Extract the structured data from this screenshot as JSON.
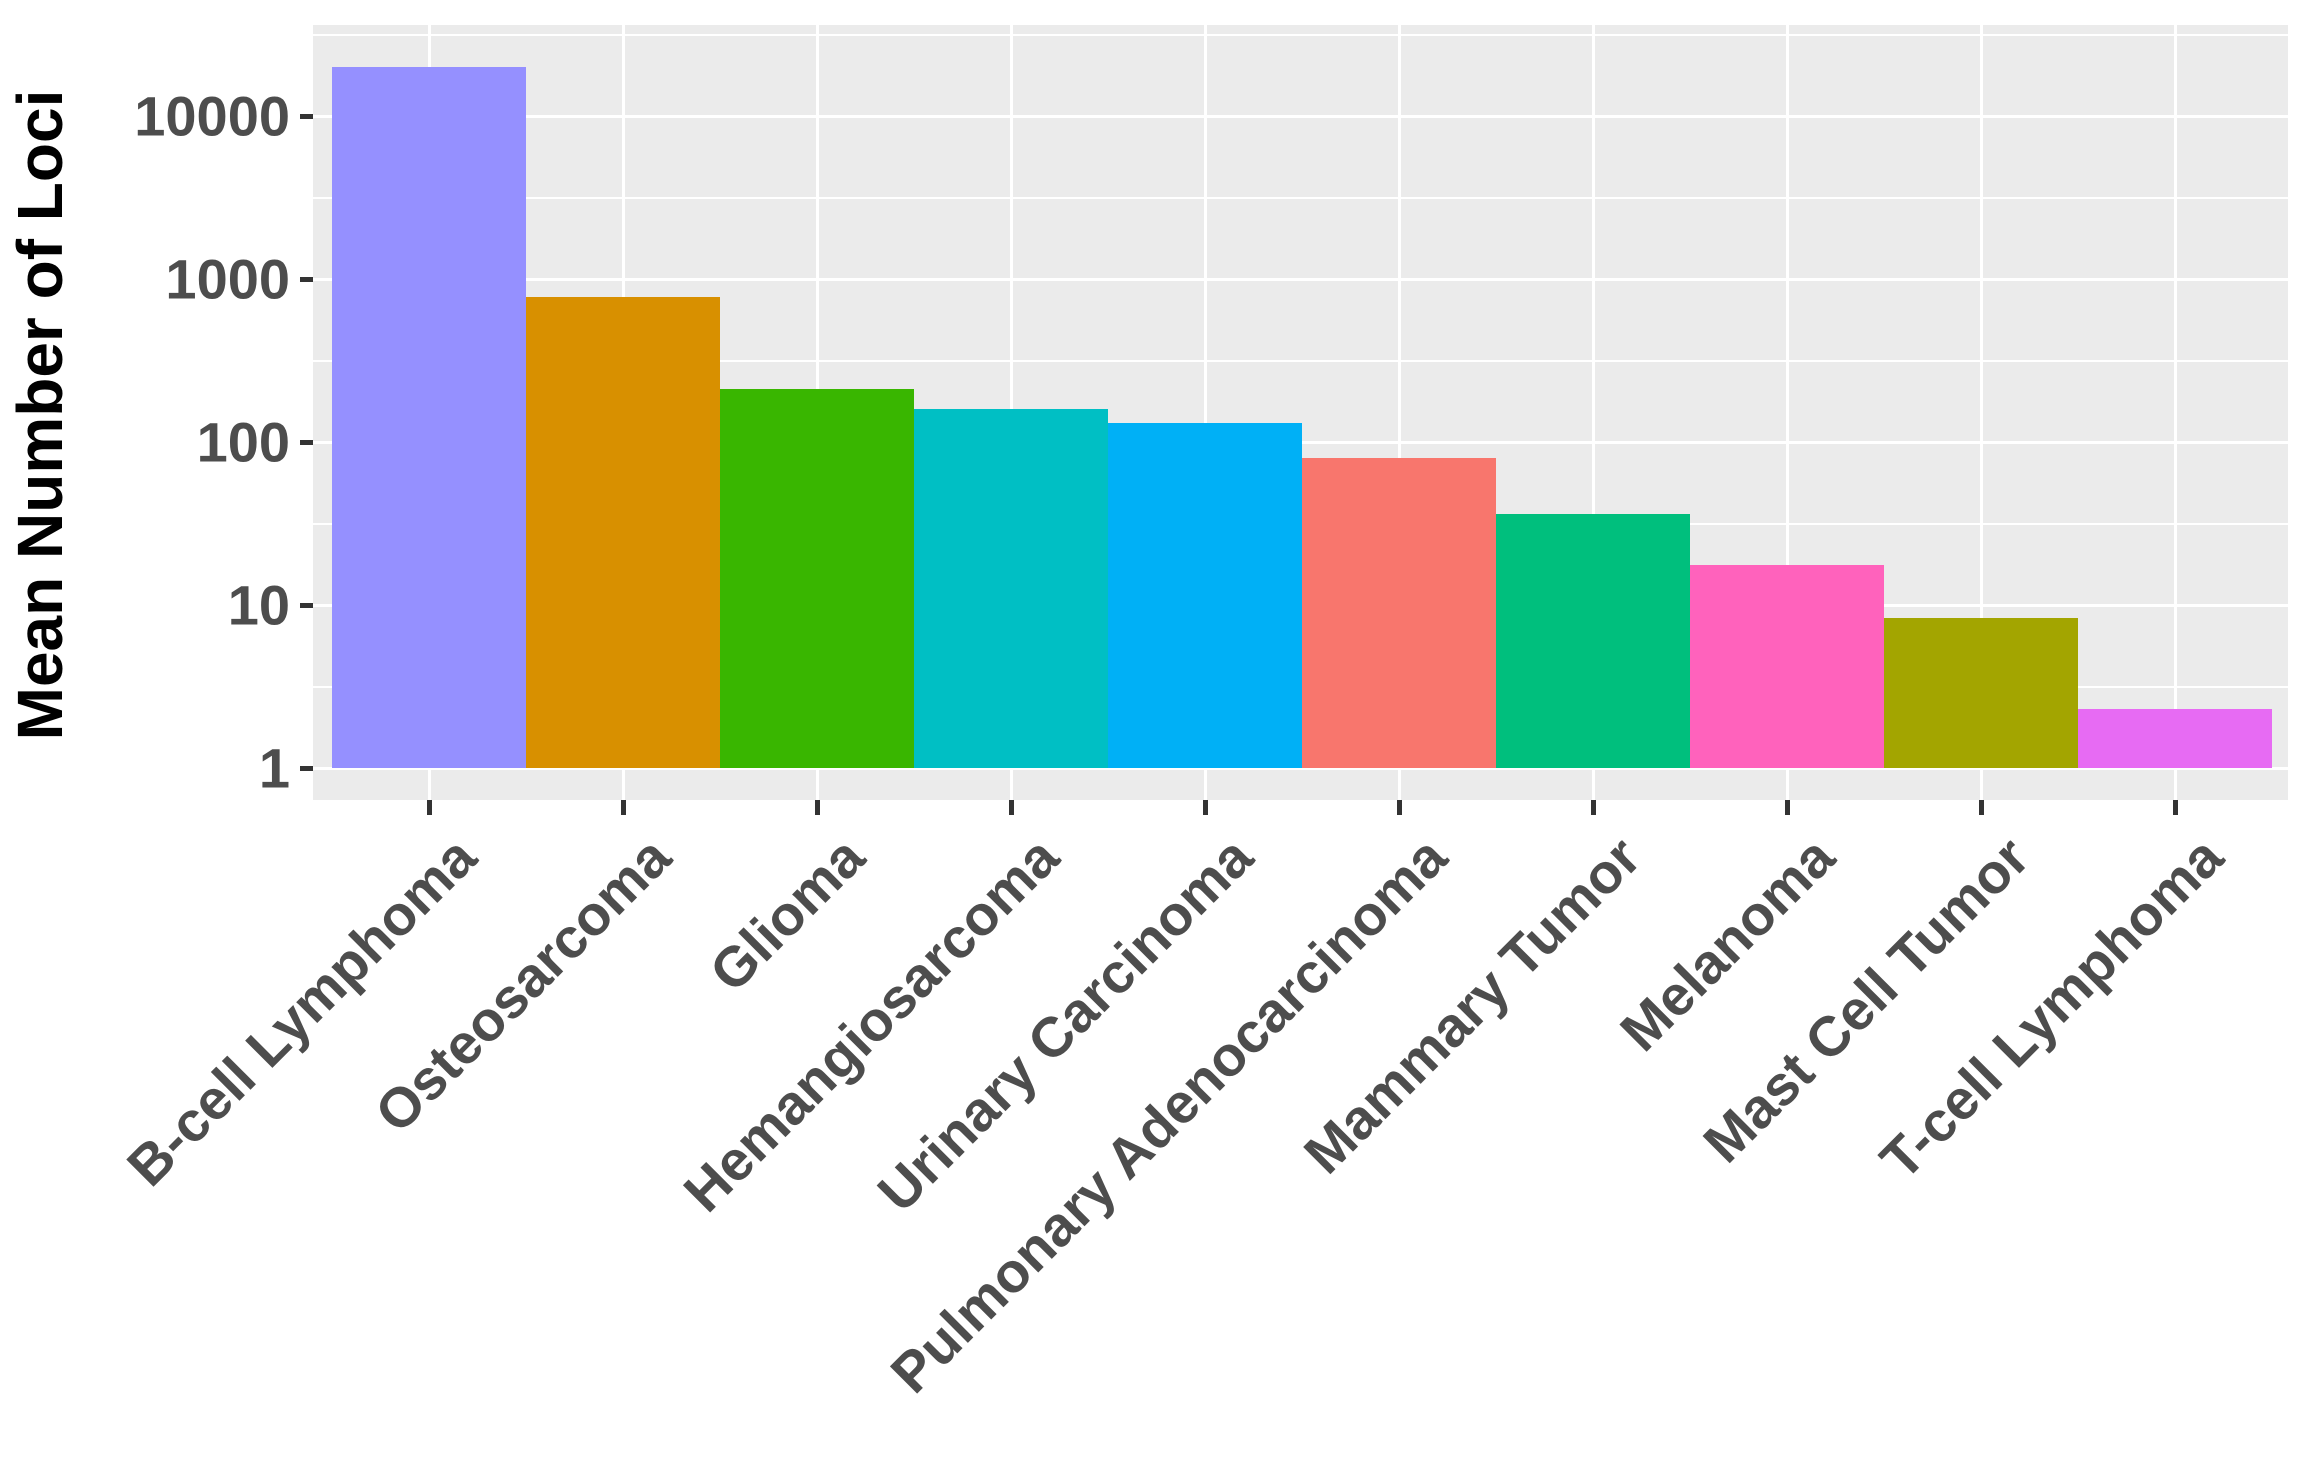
{
  "style": {
    "background": "#FFFFFF",
    "panel_bg": "#EBEBEB",
    "grid_color": "#FFFFFF",
    "axis_text_color": "#4D4D4D",
    "axis_title_color": "#000000",
    "tick_mark_color": "#333333"
  },
  "chart_data": {
    "type": "bar",
    "title": "",
    "xlabel": "",
    "ylabel": "Mean Number of Loci",
    "y_scale": "log10",
    "ylim": [
      1,
      36000
    ],
    "yticks": [
      1,
      10,
      100,
      1000,
      10000
    ],
    "ytick_labels": [
      "1",
      "10",
      "100",
      "1000",
      "10000"
    ],
    "grid": "major+minor, white on gray panel",
    "legend": "none",
    "categories": [
      "B-cell Lymphoma",
      "Osteosarcoma",
      "Glioma",
      "Hemangiosarcoma",
      "Urinary Carcinoma",
      "Pulmonary Adenocarcinoma",
      "Mammary Tumor",
      "Melanoma",
      "Mast Cell Tumor",
      "T-cell Lymphoma"
    ],
    "series": [
      {
        "name": "Mean Number of Loci",
        "values": [
          20000,
          780,
          210,
          160,
          130,
          80,
          36,
          17.5,
          8.3,
          2.3
        ]
      }
    ],
    "bar_colors": [
      "#9590FF",
      "#D89000",
      "#39B600",
      "#00BFC4",
      "#00B0F6",
      "#F8766D",
      "#00BF7D",
      "#FF62BC",
      "#A3A500",
      "#E76BF3"
    ]
  }
}
